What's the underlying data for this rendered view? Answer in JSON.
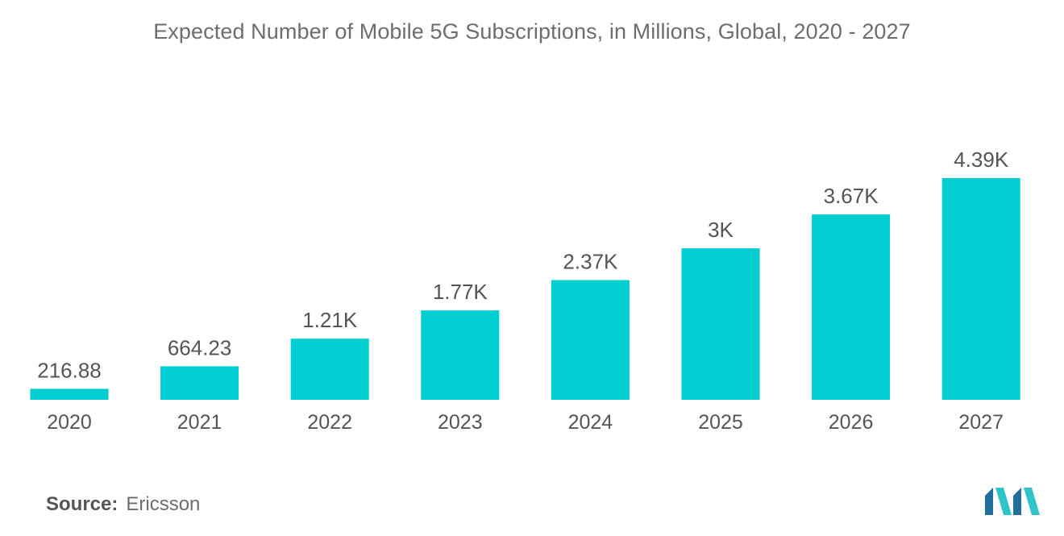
{
  "chart_data": {
    "type": "bar",
    "title": "Expected Number of Mobile 5G Subscriptions, in Millions, Global, 2020 - 2027",
    "categories": [
      "2020",
      "2021",
      "2022",
      "2023",
      "2024",
      "2025",
      "2026",
      "2027"
    ],
    "values": [
      216.88,
      664.23,
      1210,
      1770,
      2370,
      3000,
      3670,
      4390
    ],
    "data_labels": [
      "216.88",
      "664.23",
      "1.21K",
      "1.77K",
      "2.37K",
      "3K",
      "3.67K",
      "4.39K"
    ],
    "ylim": [
      0,
      4390
    ],
    "grid": false,
    "legend": "none",
    "bar_color": "#00ced1",
    "label_color": "#555555"
  },
  "source": {
    "label": "Source:",
    "value": "Ericsson"
  },
  "logo": {
    "icon": "mordor-intelligence-logo-icon",
    "colors": [
      "#1f6f9a",
      "#2ec4c9"
    ]
  }
}
